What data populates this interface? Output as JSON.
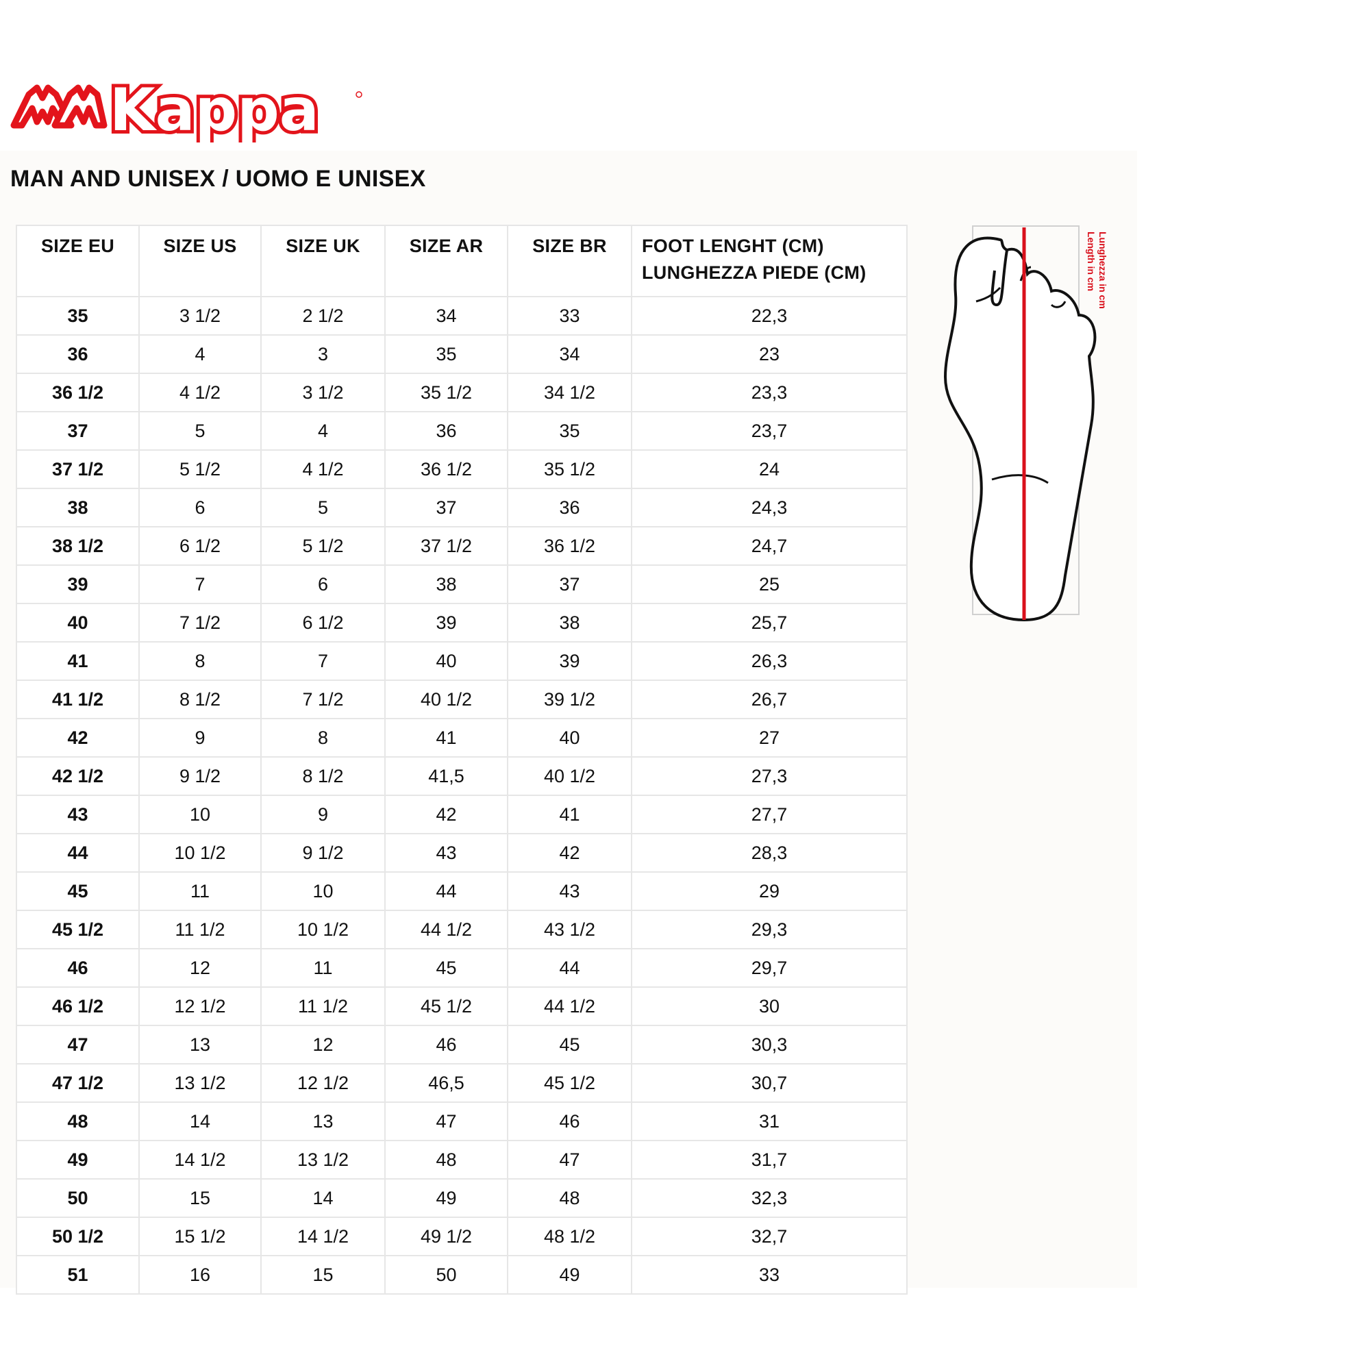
{
  "brand": {
    "name": "Kappa",
    "color": "#e3141b"
  },
  "title": "MAN AND UNISEX / UOMO E UNISEX",
  "table": {
    "headers": [
      "SIZE EU",
      "SIZE US",
      "SIZE UK",
      "SIZE AR",
      "SIZE BR"
    ],
    "foot_header": [
      "FOOT LENGHT (CM)",
      "LUNGHEZZA PIEDE (CM)"
    ],
    "rows": [
      [
        "35",
        "3 1/2",
        "2 1/2",
        "34",
        "33",
        "22,3"
      ],
      [
        "36",
        "4",
        "3",
        "35",
        "34",
        "23"
      ],
      [
        "36 1/2",
        "4 1/2",
        "3 1/2",
        "35 1/2",
        "34 1/2",
        "23,3"
      ],
      [
        "37",
        "5",
        "4",
        "36",
        "35",
        "23,7"
      ],
      [
        "37 1/2",
        "5 1/2",
        "4 1/2",
        "36 1/2",
        "35 1/2",
        "24"
      ],
      [
        "38",
        "6",
        "5",
        "37",
        "36",
        "24,3"
      ],
      [
        "38 1/2",
        "6 1/2",
        "5 1/2",
        "37 1/2",
        "36 1/2",
        "24,7"
      ],
      [
        "39",
        "7",
        "6",
        "38",
        "37",
        "25"
      ],
      [
        "40",
        "7 1/2",
        "6 1/2",
        "39",
        "38",
        "25,7"
      ],
      [
        "41",
        "8",
        "7",
        "40",
        "39",
        "26,3"
      ],
      [
        "41 1/2",
        "8 1/2",
        "7 1/2",
        "40 1/2",
        "39 1/2",
        "26,7"
      ],
      [
        "42",
        "9",
        "8",
        "41",
        "40",
        "27"
      ],
      [
        "42 1/2",
        "9 1/2",
        "8 1/2",
        "41,5",
        "40 1/2",
        "27,3"
      ],
      [
        "43",
        "10",
        "9",
        "42",
        "41",
        "27,7"
      ],
      [
        "44",
        "10 1/2",
        "9 1/2",
        "43",
        "42",
        "28,3"
      ],
      [
        "45",
        "11",
        "10",
        "44",
        "43",
        "29"
      ],
      [
        "45 1/2",
        "11 1/2",
        "10 1/2",
        "44 1/2",
        "43 1/2",
        "29,3"
      ],
      [
        "46",
        "12",
        "11",
        "45",
        "44",
        "29,7"
      ],
      [
        "46 1/2",
        "12 1/2",
        "11 1/2",
        "45 1/2",
        "44 1/2",
        "30"
      ],
      [
        "47",
        "13",
        "12",
        "46",
        "45",
        "30,3"
      ],
      [
        "47 1/2",
        "13 1/2",
        "12 1/2",
        "46,5",
        "45 1/2",
        "30,7"
      ],
      [
        "48",
        "14",
        "13",
        "47",
        "46",
        "31"
      ],
      [
        "49",
        "14 1/2",
        "13 1/2",
        "48",
        "47",
        "31,7"
      ],
      [
        "50",
        "15",
        "14",
        "49",
        "48",
        "32,3"
      ],
      [
        "50 1/2",
        "15 1/2",
        "14 1/2",
        "49 1/2",
        "48 1/2",
        "32,7"
      ],
      [
        "51",
        "16",
        "15",
        "50",
        "49",
        "33"
      ]
    ]
  },
  "foot_diagram": {
    "label_en": "Length in cm",
    "label_it": "Lunghezza in cm",
    "line_color": "#d9101c"
  }
}
